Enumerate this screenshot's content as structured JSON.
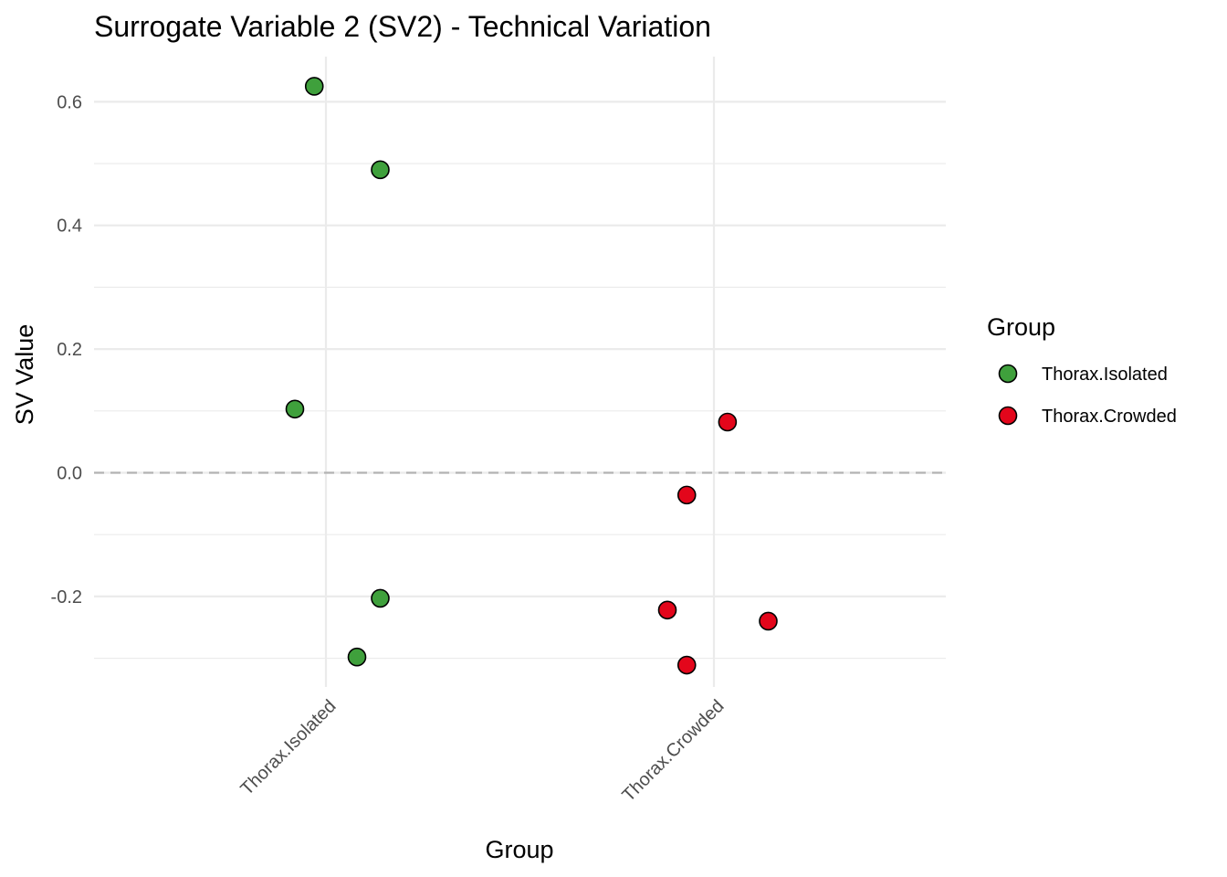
{
  "chart_data": {
    "type": "scatter",
    "title": "Surrogate Variable 2 (SV2) - Technical Variation",
    "xlabel": "Group",
    "ylabel": "SV Value",
    "categories": [
      "Thorax.Isolated",
      "Thorax.Crowded"
    ],
    "ylim": [
      -0.35,
      0.67
    ],
    "yticks": [
      -0.2,
      0.0,
      0.2,
      0.4,
      0.6
    ],
    "ytick_labels": [
      "-0.2",
      "0.0",
      "0.2",
      "0.4",
      "0.6"
    ],
    "reference_line": {
      "y": 0,
      "style": "dashed"
    },
    "legend": {
      "title": "Group",
      "position": "right",
      "entries": [
        {
          "label": "Thorax.Isolated",
          "color": "#3fa03c"
        },
        {
          "label": "Thorax.Crowded",
          "color": "#e3061b"
        }
      ]
    },
    "series": [
      {
        "name": "Thorax.Isolated",
        "color": "#3fa03c",
        "points": [
          {
            "x": "Thorax.Isolated",
            "jitter": -0.03,
            "y": 0.625
          },
          {
            "x": "Thorax.Isolated",
            "jitter": 0.14,
            "y": 0.49
          },
          {
            "x": "Thorax.Isolated",
            "jitter": -0.08,
            "y": 0.103
          },
          {
            "x": "Thorax.Isolated",
            "jitter": 0.14,
            "y": -0.203
          },
          {
            "x": "Thorax.Isolated",
            "jitter": 0.08,
            "y": -0.298
          }
        ]
      },
      {
        "name": "Thorax.Crowded",
        "color": "#e3061b",
        "points": [
          {
            "x": "Thorax.Crowded",
            "jitter": 0.035,
            "y": 0.082
          },
          {
            "x": "Thorax.Crowded",
            "jitter": -0.07,
            "y": -0.036
          },
          {
            "x": "Thorax.Crowded",
            "jitter": -0.12,
            "y": -0.222
          },
          {
            "x": "Thorax.Crowded",
            "jitter": 0.14,
            "y": -0.24
          },
          {
            "x": "Thorax.Crowded",
            "jitter": -0.07,
            "y": -0.311
          }
        ]
      }
    ]
  }
}
